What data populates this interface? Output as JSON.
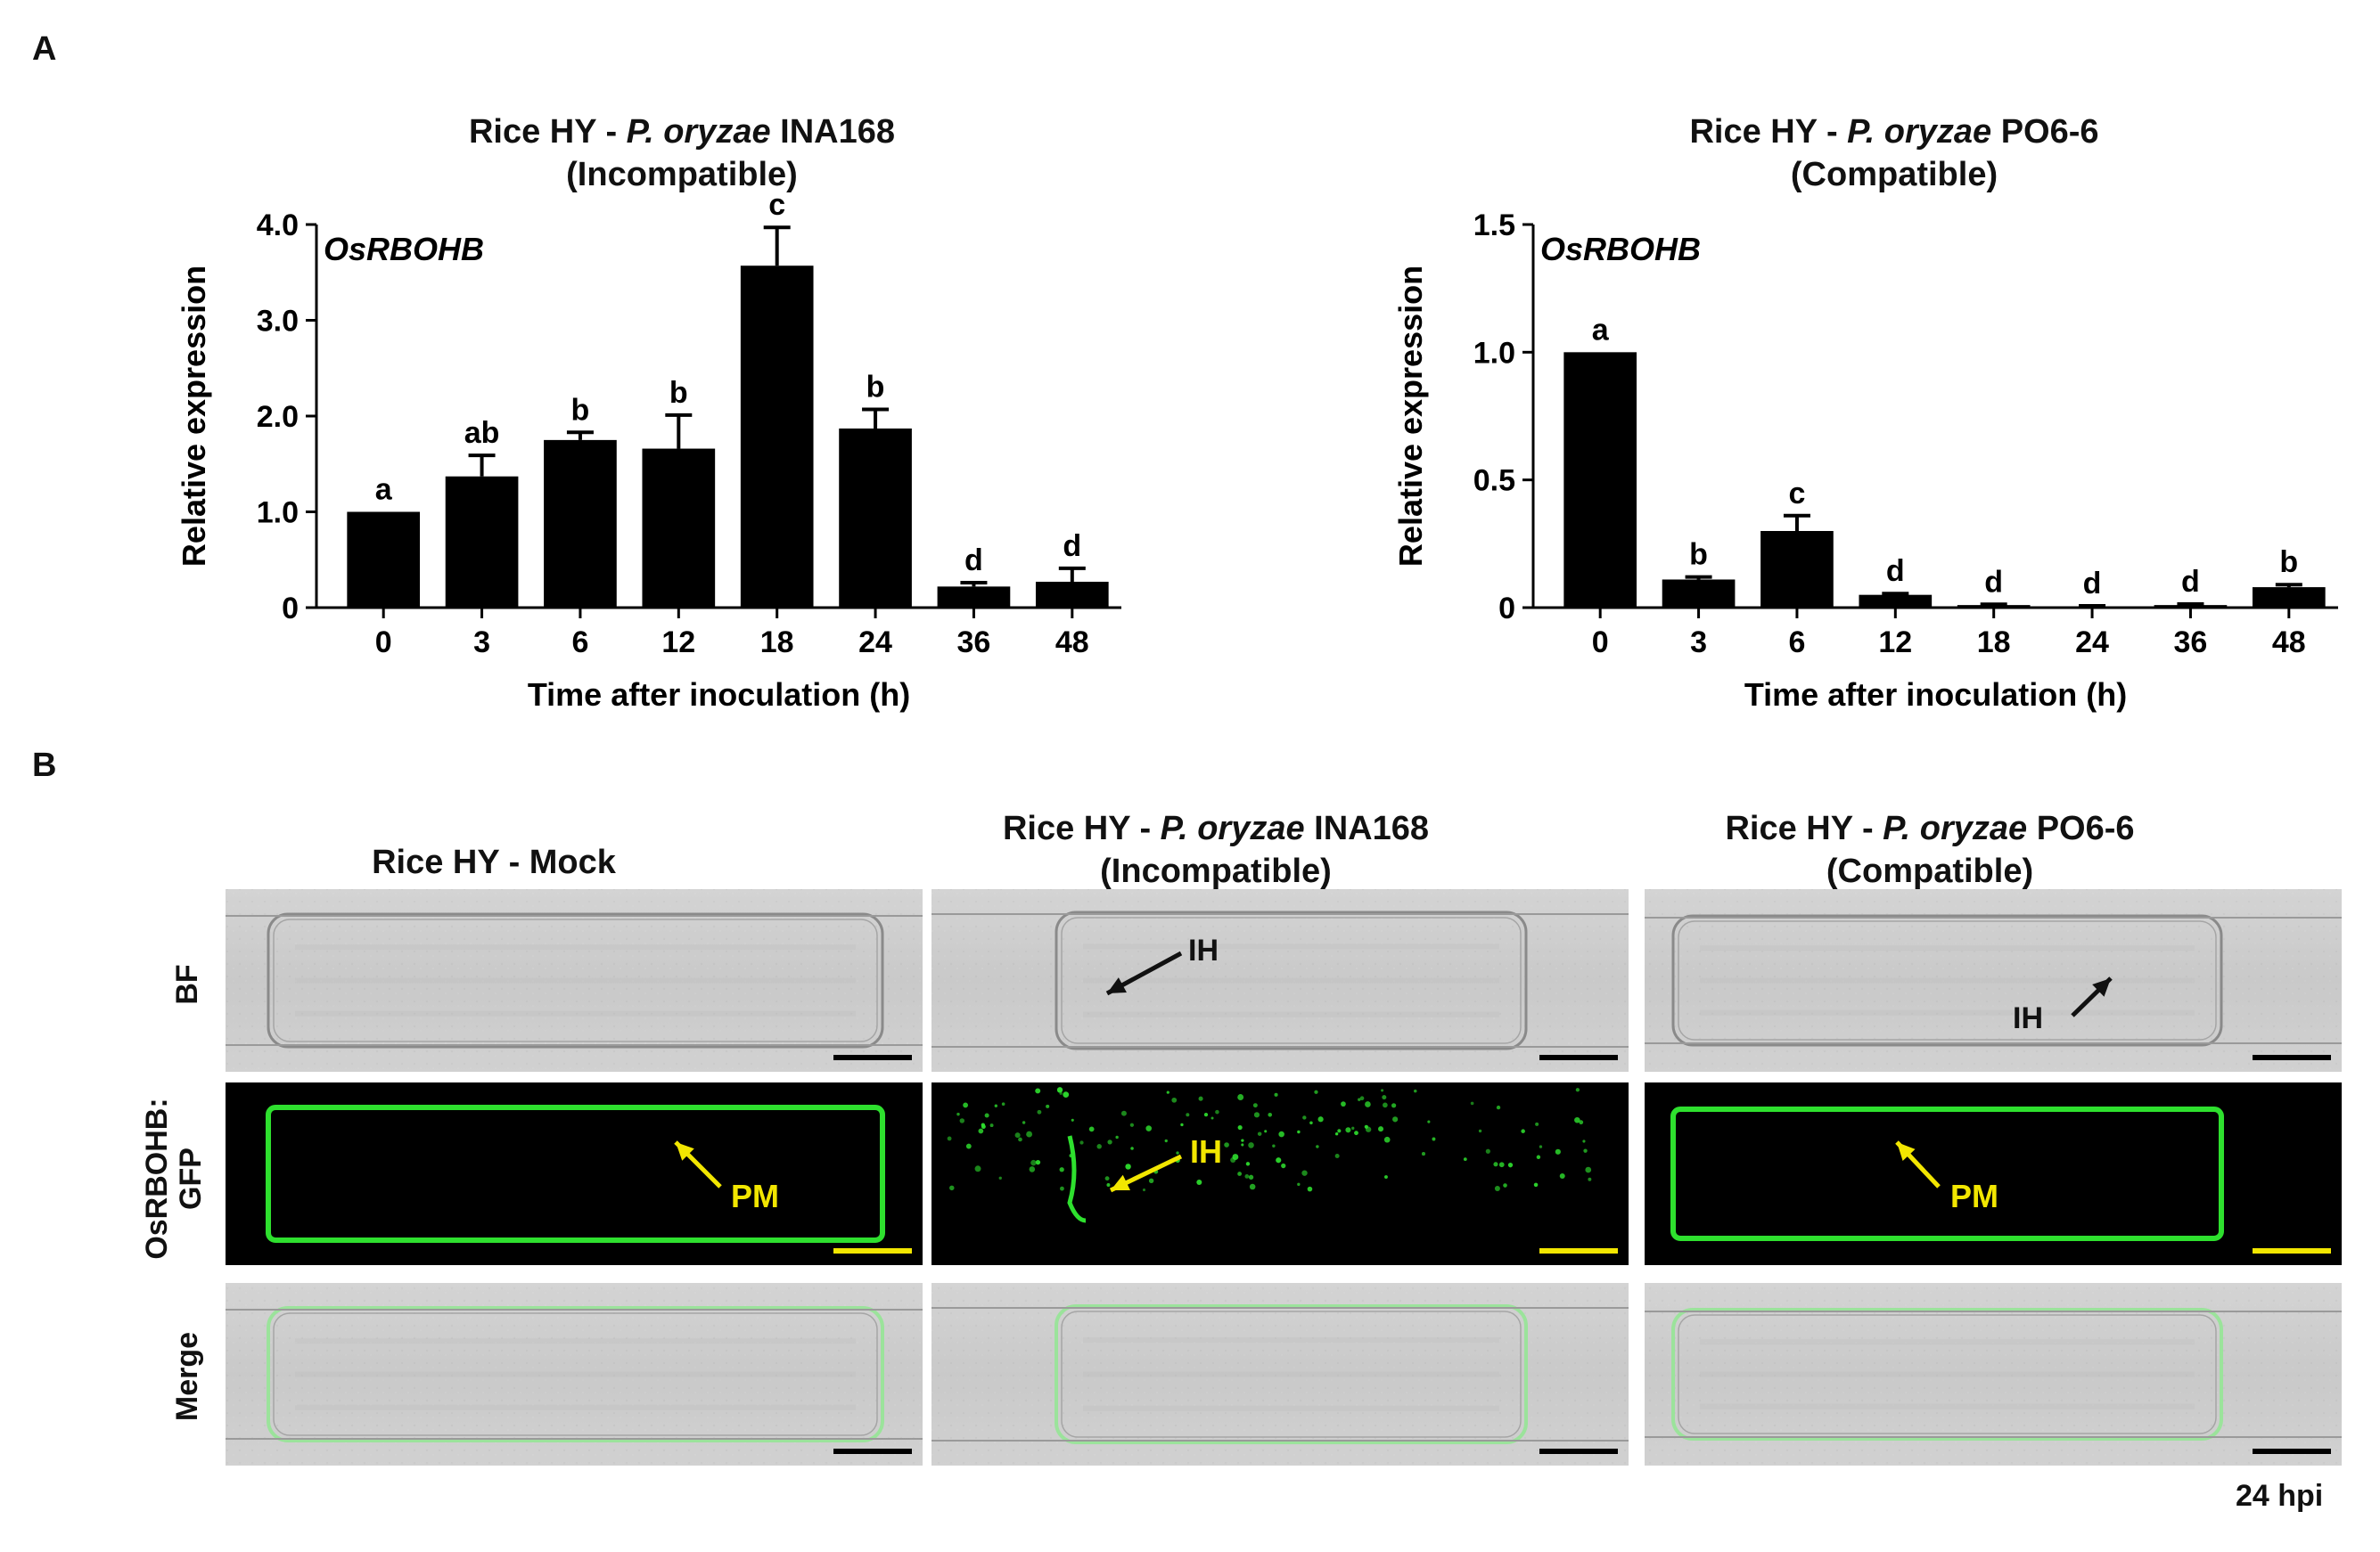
{
  "panel_a_label": "A",
  "panel_b_label": "B",
  "charts": {
    "left": {
      "title_prefix": "Rice HY - ",
      "title_species": "P. oryzae",
      "title_strain": " INA168",
      "title_line2": "(Incompatible)",
      "gene": "OsRBOHB"
    },
    "right": {
      "title_prefix": "Rice HY - ",
      "title_species": "P. oryzae",
      "title_strain": " PO6-6",
      "title_line2": "(Compatible)",
      "gene": "OsRBOHB"
    }
  },
  "chart_data": [
    {
      "type": "bar",
      "categories": [
        "0",
        "3",
        "6",
        "12",
        "18",
        "24",
        "36",
        "48"
      ],
      "values": [
        1.0,
        1.37,
        1.75,
        1.66,
        3.57,
        1.87,
        0.22,
        0.27
      ],
      "errors": [
        0.0,
        0.22,
        0.08,
        0.35,
        0.4,
        0.2,
        0.04,
        0.14
      ],
      "letters": [
        "a",
        "ab",
        "b",
        "b",
        "c",
        "b",
        "d",
        "d"
      ],
      "ylabel": "Relative expression",
      "xlabel": "Time after inoculation (h)",
      "ylim": [
        0,
        4.0
      ],
      "yticks": [
        "0",
        "1.0",
        "2.0",
        "3.0",
        "4.0"
      ],
      "ytick_values": [
        0,
        1,
        2,
        3,
        4
      ],
      "color": "#000000"
    },
    {
      "type": "bar",
      "categories": [
        "0",
        "3",
        "6",
        "12",
        "18",
        "24",
        "36",
        "48"
      ],
      "values": [
        1.0,
        0.11,
        0.3,
        0.05,
        0.01,
        0.005,
        0.01,
        0.08
      ],
      "errors": [
        0.0,
        0.01,
        0.06,
        0.005,
        0.003,
        0.002,
        0.004,
        0.01
      ],
      "letters": [
        "a",
        "b",
        "c",
        "d",
        "d",
        "d",
        "d",
        "b"
      ],
      "ylabel": "Relative expression",
      "xlabel": "Time after inoculation (h)",
      "ylim": [
        0,
        1.5
      ],
      "yticks": [
        "0",
        "0.5",
        "1.0",
        "1.5"
      ],
      "ytick_values": [
        0,
        0.5,
        1.0,
        1.5
      ],
      "color": "#000000"
    }
  ],
  "micrographs": {
    "columns": [
      {
        "title_prefix": "Rice HY - Mock",
        "title_species": "",
        "title_strain": "",
        "title_line2": ""
      },
      {
        "title_prefix": "Rice HY - ",
        "title_species": "P. oryzae",
        "title_strain": " INA168",
        "title_line2": "(Incompatible)"
      },
      {
        "title_prefix": "Rice HY - ",
        "title_species": "P. oryzae",
        "title_strain": " PO6-6",
        "title_line2": "(Compatible)"
      }
    ],
    "rows": [
      "BF",
      "OsRBOHB:\nGFP",
      "Merge"
    ],
    "annotations": {
      "ih": "IH",
      "pm": "PM"
    },
    "timepoint": "24 hpi",
    "colors": {
      "annotation_dark": "#111111",
      "annotation_yellow": "#f2e600",
      "gfp": "#2ee02e"
    }
  }
}
